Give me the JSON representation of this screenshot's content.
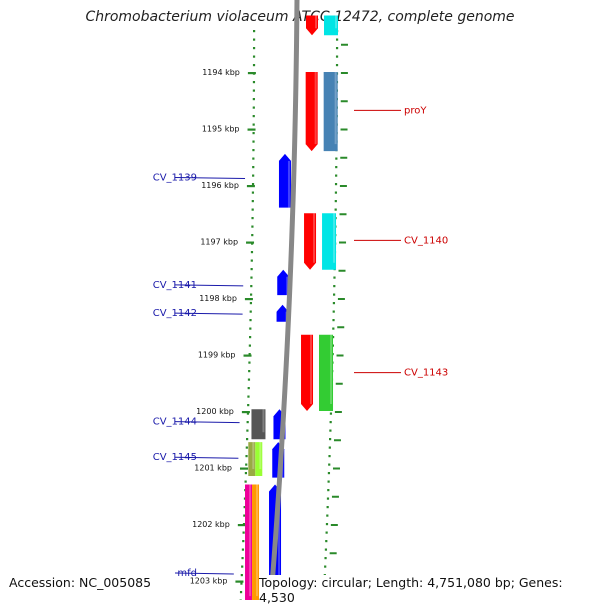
{
  "title": "Chromobacterium violaceum ATCC 12472, complete genome",
  "footer": {
    "accession": "Accession: NC_005085",
    "stats": "Topology: circular; Length: 4,751,080 bp; Genes: 4,530"
  },
  "colors": {
    "scale": "#2a8a2a",
    "backbone": "#888888",
    "left_label": "#1a1aaa",
    "right_label": "#cc0000"
  },
  "ticks": [
    {
      "label": "1194 kbp",
      "kbp": 1194
    },
    {
      "label": "1195 kbp",
      "kbp": 1195
    },
    {
      "label": "1196 kbp",
      "kbp": 1196
    },
    {
      "label": "1197 kbp",
      "kbp": 1197
    },
    {
      "label": "1198 kbp",
      "kbp": 1198
    },
    {
      "label": "1199 kbp",
      "kbp": 1199
    },
    {
      "label": "1200 kbp",
      "kbp": 1200
    },
    {
      "label": "1201 kbp",
      "kbp": 1201
    },
    {
      "label": "1202 kbp",
      "kbp": 1202
    },
    {
      "label": "1203 kbp",
      "kbp": 1203
    }
  ],
  "left_labels": [
    {
      "text": "CV_1139",
      "kbp": 1195.85
    },
    {
      "text": "CV_1141",
      "kbp": 1197.75
    },
    {
      "text": "CV_1142",
      "kbp": 1198.25
    },
    {
      "text": "CV_1144",
      "kbp": 1200.17
    },
    {
      "text": "CV_1145",
      "kbp": 1200.8
    },
    {
      "text": "mfd",
      "kbp": 1202.85
    }
  ],
  "right_labels": [
    {
      "text": "proY",
      "kbp": 1194.68
    },
    {
      "text": "CV_1140",
      "kbp": 1196.98
    },
    {
      "text": "CV_1143",
      "kbp": 1199.32
    }
  ],
  "genes": [
    {
      "track": "inner-right",
      "start": 1193.0,
      "end": 1193.35,
      "color": "#ff0000",
      "dir": "down"
    },
    {
      "track": "outer-right",
      "start": 1193.0,
      "end": 1193.35,
      "color": "#00e5e5",
      "dir": "none"
    },
    {
      "track": "inner-right",
      "start": 1194.0,
      "end": 1195.4,
      "color": "#ff0000",
      "dir": "down"
    },
    {
      "track": "outer-right",
      "start": 1194.0,
      "end": 1195.4,
      "color": "#4682b4",
      "dir": "none"
    },
    {
      "track": "inner-left",
      "start": 1195.45,
      "end": 1196.4,
      "color": "#0000ff",
      "dir": "up"
    },
    {
      "track": "inner-right",
      "start": 1196.5,
      "end": 1197.5,
      "color": "#ff0000",
      "dir": "down"
    },
    {
      "track": "outer-right",
      "start": 1196.5,
      "end": 1197.5,
      "color": "#00e5e5",
      "dir": "none"
    },
    {
      "track": "inner-left",
      "start": 1197.5,
      "end": 1197.95,
      "color": "#0000ff",
      "dir": "up"
    },
    {
      "track": "inner-left",
      "start": 1198.12,
      "end": 1198.42,
      "color": "#0000ff",
      "dir": "up"
    },
    {
      "track": "inner-right",
      "start": 1198.65,
      "end": 1200.0,
      "color": "#ff0000",
      "dir": "down"
    },
    {
      "track": "outer-right",
      "start": 1198.65,
      "end": 1200.0,
      "color": "#33cc33",
      "dir": "none"
    },
    {
      "track": "outer-left",
      "start": 1199.97,
      "end": 1200.5,
      "color": "#555555",
      "dir": "none"
    },
    {
      "track": "inner-left",
      "start": 1199.97,
      "end": 1200.5,
      "color": "#0000ff",
      "dir": "up"
    },
    {
      "track": "outer-left-a",
      "start": 1200.55,
      "end": 1201.15,
      "color": "#99aa44",
      "dir": "none"
    },
    {
      "track": "outer-left-b",
      "start": 1200.55,
      "end": 1201.15,
      "color": "#99ff33",
      "dir": "none"
    },
    {
      "track": "inner-left",
      "start": 1200.55,
      "end": 1201.18,
      "color": "#0000ff",
      "dir": "up"
    },
    {
      "track": "outer-left-a",
      "start": 1201.3,
      "end": 1203.4,
      "color": "#ee0099",
      "dir": "none"
    },
    {
      "track": "outer-left-b",
      "start": 1201.3,
      "end": 1203.4,
      "color": "#ff9900",
      "dir": "none"
    },
    {
      "track": "inner-left",
      "start": 1201.3,
      "end": 1203.4,
      "color": "#0000ff",
      "dir": "up"
    }
  ]
}
